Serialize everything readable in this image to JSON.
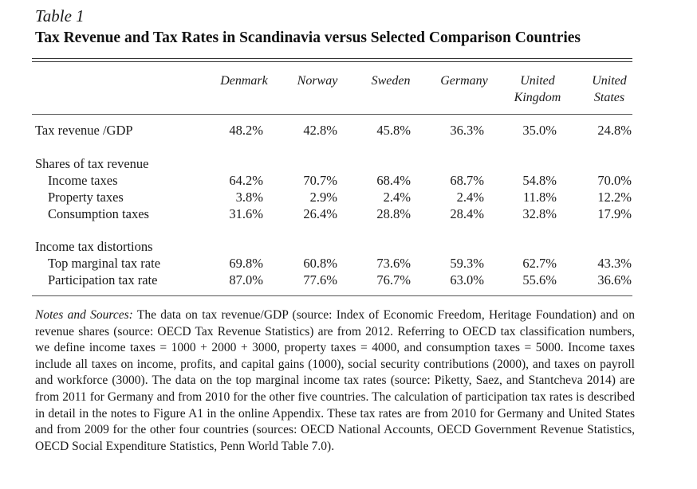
{
  "table": {
    "label": "Table 1",
    "title": "Tax Revenue and Tax Rates in Scandinavia versus Selected Comparison Countries",
    "columns": [
      {
        "line1": "",
        "line2": "Denmark"
      },
      {
        "line1": "",
        "line2": "Norway"
      },
      {
        "line1": "",
        "line2": "Sweden"
      },
      {
        "line1": "",
        "line2": "Germany"
      },
      {
        "line1": "United",
        "line2": "Kingdom"
      },
      {
        "line1": "United",
        "line2": "States"
      }
    ],
    "rows": [
      {
        "label": "Tax revenue /GDP",
        "indent": false,
        "values": [
          "48.2%",
          "42.8%",
          "45.8%",
          "36.3%",
          "35.0%",
          "24.8%"
        ]
      },
      {
        "label": "Shares of tax revenue",
        "indent": false,
        "values": []
      },
      {
        "label": "Income taxes",
        "indent": true,
        "values": [
          "64.2%",
          "70.7%",
          "68.4%",
          "68.7%",
          "54.8%",
          "70.0%"
        ]
      },
      {
        "label": "Property taxes",
        "indent": true,
        "values": [
          "3.8%",
          "2.9%",
          "2.4%",
          "2.4%",
          "11.8%",
          "12.2%"
        ]
      },
      {
        "label": "Consumption taxes",
        "indent": true,
        "values": [
          "31.6%",
          "26.4%",
          "28.8%",
          "28.4%",
          "32.8%",
          "17.9%"
        ]
      },
      {
        "label": "Income tax distortions",
        "indent": false,
        "values": []
      },
      {
        "label": "Top marginal tax rate",
        "indent": true,
        "values": [
          "69.8%",
          "60.8%",
          "73.6%",
          "59.3%",
          "62.7%",
          "43.3%"
        ]
      },
      {
        "label": "Participation tax rate",
        "indent": true,
        "values": [
          "87.0%",
          "77.6%",
          "76.7%",
          "63.0%",
          "55.6%",
          "36.6%"
        ]
      }
    ]
  },
  "notes": {
    "lead": "Notes and Sources:",
    "body": "The data on tax revenue/GDP (source: Index of Economic Freedom, Heritage Foundation) and on revenue shares (source: OECD Tax Revenue Statistics) are from 2012. Referring to OECD tax classification numbers, we define income taxes = 1000 + 2000 + 3000, property taxes = 4000, and consumption taxes = 5000. Income taxes include all taxes on income, profits, and capital gains (1000), social security contributions (2000), and taxes on payroll and workforce (3000). The data on the top marginal income tax rates (source: Piketty, Saez, and Stantcheva 2014) are from 2011 for Germany and from 2010 for the other five countries. The calculation of participation tax rates is described in detail in the notes to Figure A1 in the online Appendix. These tax rates are from 2010 for Germany and United States and from 2009 for the other four countries (sources: OECD National Accounts, OECD Government Revenue Statistics, OECD Social Expenditure Statistics, Penn World Table 7.0)."
  }
}
